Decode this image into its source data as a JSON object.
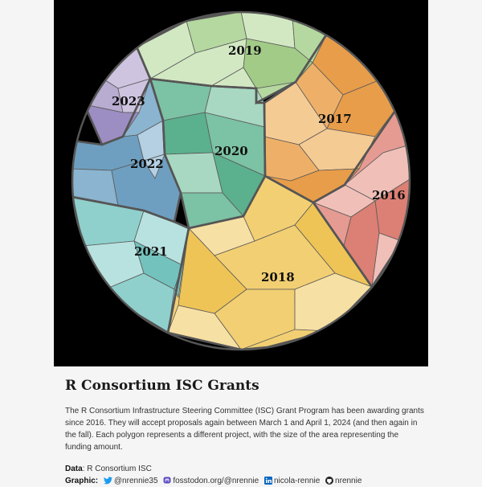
{
  "chart_data": {
    "type": "voronoi treemap",
    "title": "R Consortium ISC Grants",
    "regions": [
      {
        "year": "2019",
        "label": "2019",
        "color": "#b5d8a0",
        "light": "#d2e8c2",
        "dark": "#a2cb88"
      },
      {
        "year": "2017",
        "label": "2017",
        "color": "#eeb068",
        "light": "#f5cb94",
        "dark": "#e89d4a"
      },
      {
        "year": "2023",
        "label": "2023",
        "color": "#b8acd0",
        "light": "#cec4e0",
        "dark": "#9c8ec2"
      },
      {
        "year": "2020",
        "label": "2020",
        "color": "#7cc2a4",
        "light": "#a8d8c2",
        "dark": "#5bb08e"
      },
      {
        "year": "2022",
        "label": "2022",
        "color": "#8ab4cf",
        "light": "#b4d0e2",
        "dark": "#6e9fc0"
      },
      {
        "year": "2016",
        "label": "2016",
        "color": "#e59b92",
        "light": "#f0c0b8",
        "dark": "#dc7f74"
      },
      {
        "year": "2021",
        "label": "2021",
        "color": "#8fd0cc",
        "light": "#b8e2df",
        "dark": "#74c2bd"
      },
      {
        "year": "2018",
        "label": "2018",
        "color": "#f2cf72",
        "light": "#f7e0a4",
        "dark": "#efc456"
      }
    ]
  },
  "caption": {
    "title": "R Consortium ISC Grants",
    "description": "The R Consortium Infrastructure Steering Committee (ISC) Grant Program has been awarding grants since 2016. They will accept proposals again between March 1 and April 1, 2024 (and then again in the fall). Each polygon represents a different project, with the size of the area representing the funding amount.",
    "data_label": "Data",
    "data_value": ": R Consortium ISC",
    "graphic_label": "Graphic:",
    "twitter": "@nrennie35",
    "mastodon": "fosstodon.org/@nrennie",
    "linkedin": "nicola-rennie",
    "github": "nrennie"
  },
  "icons": [
    "twitter-icon",
    "mastodon-icon",
    "linkedin-icon",
    "github-icon"
  ]
}
